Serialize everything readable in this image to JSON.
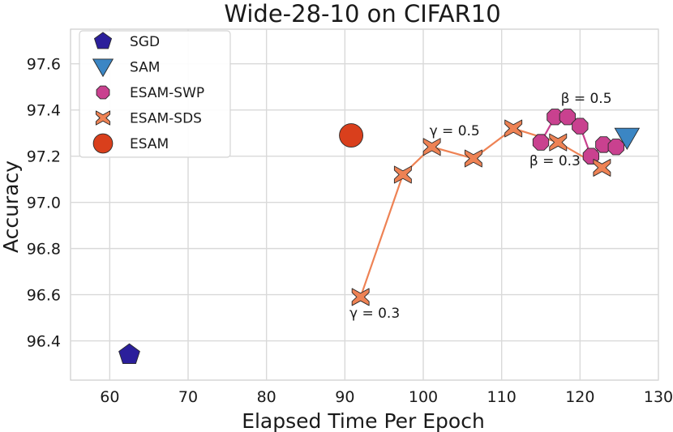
{
  "chart_data": {
    "type": "scatter",
    "title": "Wide-28-10 on CIFAR10",
    "xlabel": "Elapsed Time Per Epoch",
    "ylabel": "Accuracy",
    "xlim": [
      55,
      130
    ],
    "ylim": [
      96.23,
      97.75
    ],
    "xticks": [
      "60",
      "70",
      "80",
      "90",
      "100",
      "110",
      "120",
      "130"
    ],
    "yticks": [
      "96.4",
      "96.6",
      "96.8",
      "97.0",
      "97.2",
      "97.4",
      "97.6"
    ],
    "grid": true,
    "legend_position": "upper-left",
    "series": [
      {
        "name": "SGD",
        "marker": "pentagon",
        "color": "#2b1f9b",
        "line": false,
        "points": [
          {
            "x": 62.5,
            "y": 96.34
          }
        ]
      },
      {
        "name": "SAM",
        "marker": "triangle-down",
        "color": "#3b86c4",
        "line": false,
        "points": [
          {
            "x": 126.0,
            "y": 97.28
          }
        ]
      },
      {
        "name": "ESAM-SWP",
        "marker": "octagon",
        "color": "#c9418f",
        "line": true,
        "points": [
          {
            "x": 115.0,
            "y": 97.26
          },
          {
            "x": 116.8,
            "y": 97.37
          },
          {
            "x": 118.4,
            "y": 97.37
          },
          {
            "x": 120.0,
            "y": 97.33
          },
          {
            "x": 121.4,
            "y": 97.2
          },
          {
            "x": 123.0,
            "y": 97.25
          },
          {
            "x": 124.6,
            "y": 97.24
          }
        ]
      },
      {
        "name": "ESAM-SDS",
        "marker": "x-cross",
        "color": "#ee8254",
        "line": true,
        "points": [
          {
            "x": 92.0,
            "y": 96.59
          },
          {
            "x": 97.4,
            "y": 97.12
          },
          {
            "x": 101.1,
            "y": 97.24
          },
          {
            "x": 106.4,
            "y": 97.19
          },
          {
            "x": 111.5,
            "y": 97.32
          },
          {
            "x": 117.2,
            "y": 97.26
          },
          {
            "x": 122.8,
            "y": 97.15
          }
        ]
      },
      {
        "name": "ESAM",
        "marker": "circle",
        "color": "#d93f1c",
        "line": false,
        "points": [
          {
            "x": 90.8,
            "y": 97.29
          }
        ]
      }
    ],
    "annotations": [
      {
        "text": "γ = 0.3",
        "x": 93.8,
        "y": 96.5
      },
      {
        "text": "γ = 0.5",
        "x": 104.0,
        "y": 97.29
      },
      {
        "text": "β = 0.5",
        "x": 120.8,
        "y": 97.43
      },
      {
        "text": "β = 0.3",
        "x": 116.8,
        "y": 97.16
      }
    ]
  }
}
